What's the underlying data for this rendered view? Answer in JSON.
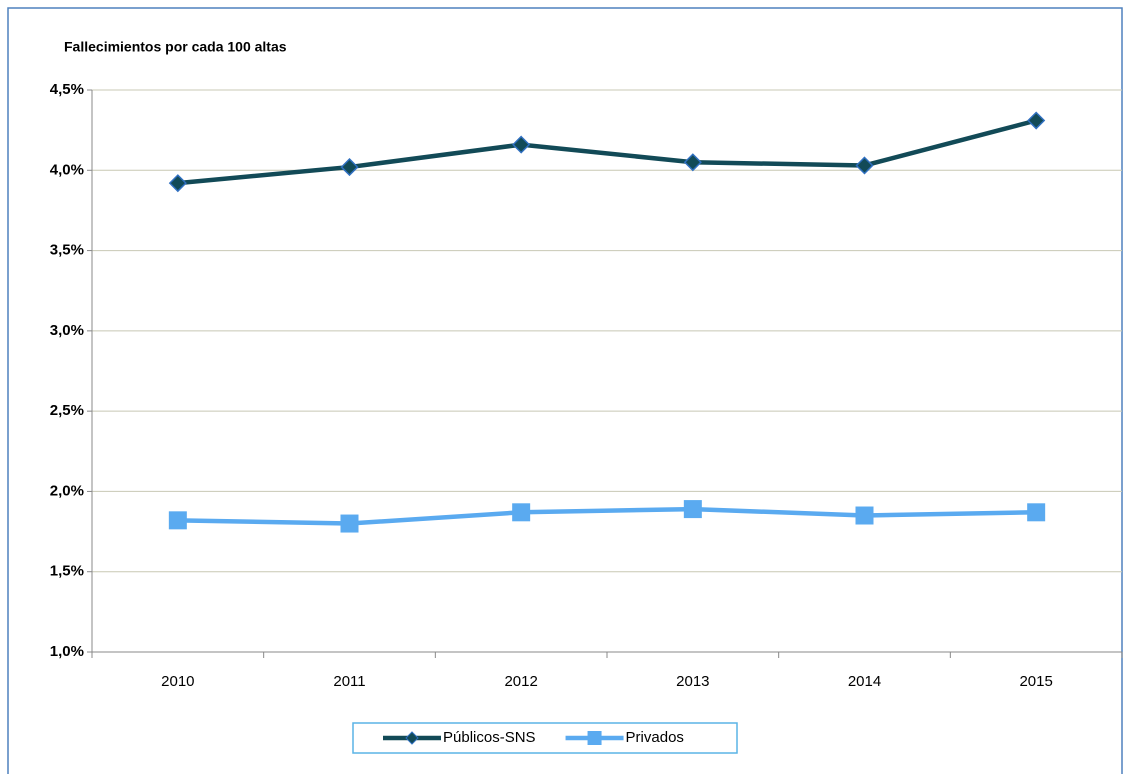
{
  "chart_data": {
    "type": "line",
    "title": "Fallecimientos por cada 100 altas",
    "categories": [
      "2010",
      "2011",
      "2012",
      "2013",
      "2014",
      "2015"
    ],
    "series": [
      {
        "name": "Públicos-SNS",
        "color": "#124a57",
        "marker": "diamond",
        "values": [
          3.92,
          4.02,
          4.16,
          4.05,
          4.03,
          4.31
        ]
      },
      {
        "name": "Privados",
        "color": "#5aaaf0",
        "marker": "square",
        "values": [
          1.82,
          1.8,
          1.87,
          1.89,
          1.85,
          1.87
        ]
      }
    ],
    "ylim": [
      1.0,
      4.5
    ],
    "yticks": [
      {
        "value": 1.0,
        "label": "1,0%"
      },
      {
        "value": 1.5,
        "label": "1,5%"
      },
      {
        "value": 2.0,
        "label": "2,0%"
      },
      {
        "value": 2.5,
        "label": "2,5%"
      },
      {
        "value": 3.0,
        "label": "3,0%"
      },
      {
        "value": 3.5,
        "label": "3,5%"
      },
      {
        "value": 4.0,
        "label": "4,0%"
      },
      {
        "value": 4.5,
        "label": "4,5%"
      }
    ],
    "grid": true,
    "legend": "bottom"
  }
}
